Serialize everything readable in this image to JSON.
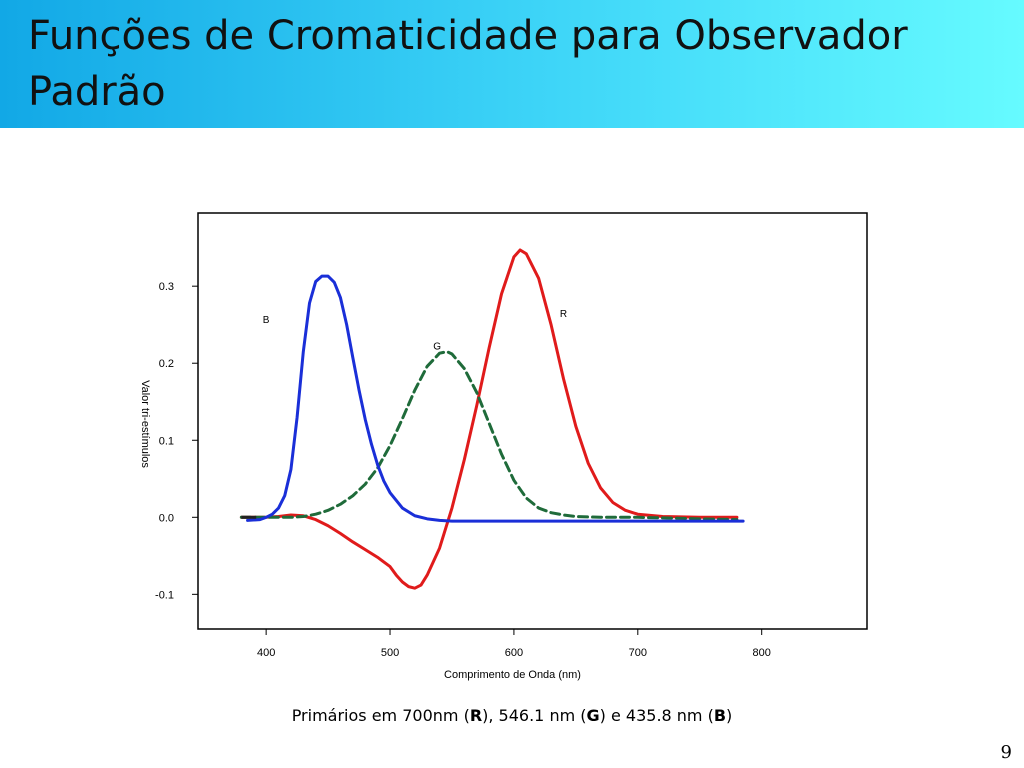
{
  "slide": {
    "title": "Funções de Cromaticidade para Observador Padrão",
    "caption": {
      "prefix": "Primários em 700nm (",
      "r": "R",
      "mid1": "), 546.1 nm (",
      "g": "G",
      "mid2": ") e 435.8 nm (",
      "b": "B",
      "suffix": ")"
    },
    "page_number": "9"
  },
  "chart_data": {
    "type": "line",
    "title": "",
    "xlabel": "Comprimento de Onda (nm)",
    "ylabel": "Valor tri-estímulos",
    "xlim": [
      345,
      885
    ],
    "ylim": [
      -0.145,
      0.395
    ],
    "x_ticks": [
      400,
      500,
      600,
      700,
      800
    ],
    "x_tick_labels": [
      "400",
      "500",
      "600",
      "700",
      "800"
    ],
    "y_ticks": [
      -0.1,
      0.0,
      0.1,
      0.2,
      0.3
    ],
    "y_tick_labels": [
      "-0.1",
      "0.0",
      "0.1",
      "0.2",
      "0.3"
    ],
    "grid": false,
    "legend": "none",
    "series": [
      {
        "name": "R",
        "color": "#e01b1b",
        "dash": "solid",
        "label_at": [
          640,
          0.26
        ],
        "x": [
          380,
          400,
          410,
          420,
          430,
          440,
          450,
          460,
          470,
          480,
          490,
          500,
          505,
          510,
          515,
          520,
          525,
          530,
          540,
          550,
          560,
          570,
          580,
          590,
          600,
          605,
          610,
          620,
          630,
          640,
          650,
          660,
          670,
          680,
          690,
          700,
          720,
          750,
          780
        ],
        "values": [
          0.0,
          0.0,
          0.001,
          0.003,
          0.002,
          -0.003,
          -0.011,
          -0.021,
          -0.032,
          -0.042,
          -0.052,
          -0.064,
          -0.075,
          -0.084,
          -0.09,
          -0.092,
          -0.088,
          -0.075,
          -0.04,
          0.012,
          0.075,
          0.145,
          0.22,
          0.29,
          0.338,
          0.347,
          0.342,
          0.31,
          0.25,
          0.18,
          0.118,
          0.07,
          0.038,
          0.019,
          0.009,
          0.004,
          0.001,
          0.0,
          0.0
        ]
      },
      {
        "name": "G",
        "color": "#1f6b3a",
        "dash": "dashed",
        "label_at": [
          538,
          0.218
        ],
        "x": [
          380,
          400,
          420,
          430,
          440,
          450,
          460,
          470,
          480,
          490,
          500,
          510,
          520,
          530,
          540,
          546,
          550,
          560,
          570,
          580,
          590,
          600,
          610,
          620,
          630,
          640,
          650,
          670,
          700,
          750,
          780
        ],
        "values": [
          0.0,
          0.0,
          0.0,
          0.001,
          0.004,
          0.009,
          0.017,
          0.028,
          0.043,
          0.064,
          0.093,
          0.128,
          0.165,
          0.196,
          0.213,
          0.215,
          0.212,
          0.193,
          0.162,
          0.122,
          0.082,
          0.048,
          0.025,
          0.012,
          0.006,
          0.003,
          0.001,
          0.0,
          0.0,
          -0.002,
          -0.003
        ]
      },
      {
        "name": "B",
        "color": "#1a2fd8",
        "dash": "solid",
        "label_at": [
          400,
          0.252
        ],
        "x": [
          385,
          395,
          400,
          405,
          410,
          415,
          420,
          425,
          430,
          435,
          440,
          445,
          450,
          455,
          460,
          465,
          470,
          475,
          480,
          485,
          490,
          495,
          500,
          510,
          520,
          530,
          540,
          550,
          560,
          580,
          600,
          650,
          700,
          785
        ],
        "values": [
          -0.004,
          -0.003,
          0.0,
          0.004,
          0.012,
          0.028,
          0.062,
          0.13,
          0.215,
          0.278,
          0.306,
          0.313,
          0.313,
          0.305,
          0.285,
          0.25,
          0.207,
          0.165,
          0.127,
          0.095,
          0.068,
          0.047,
          0.032,
          0.012,
          0.002,
          -0.002,
          -0.004,
          -0.005,
          -0.005,
          -0.005,
          -0.005,
          -0.005,
          -0.005,
          -0.005
        ]
      }
    ]
  }
}
